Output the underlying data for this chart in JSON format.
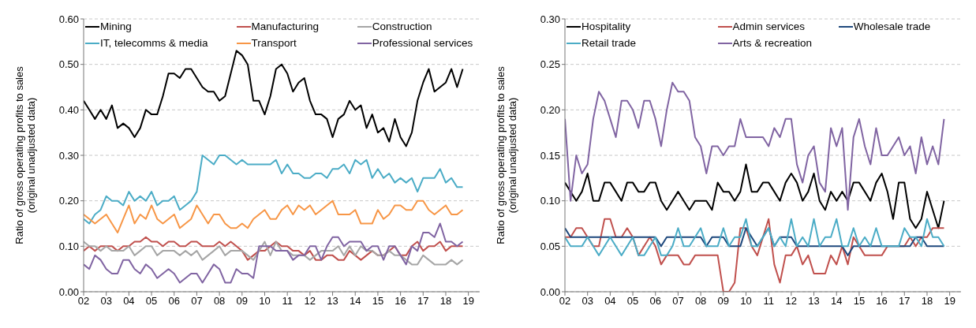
{
  "chart_data": [
    {
      "type": "line",
      "ylabel": "Ratio of gross operating profits to sales (original unadjusted data)",
      "legend": "top",
      "grid": "y",
      "marker": "none",
      "line_style": "solid",
      "x": [
        2002,
        2002.25,
        2002.5,
        2002.75,
        2003,
        2003.25,
        2003.5,
        2003.75,
        2004,
        2004.25,
        2004.5,
        2004.75,
        2005,
        2005.25,
        2005.5,
        2005.75,
        2006,
        2006.25,
        2006.5,
        2006.75,
        2007,
        2007.25,
        2007.5,
        2007.75,
        2008,
        2008.25,
        2008.5,
        2008.75,
        2009,
        2009.25,
        2009.5,
        2009.75,
        2010,
        2010.25,
        2010.5,
        2010.75,
        2011,
        2011.25,
        2011.5,
        2011.75,
        2012,
        2012.25,
        2012.5,
        2012.75,
        2013,
        2013.25,
        2013.5,
        2013.75,
        2014,
        2014.25,
        2014.5,
        2014.75,
        2015,
        2015.25,
        2015.5,
        2015.75,
        2016,
        2016.25,
        2016.5,
        2016.75,
        2017,
        2017.25,
        2017.5,
        2017.75,
        2018,
        2018.25,
        2018.5,
        2018.75
      ],
      "xlim": [
        2002,
        2019.5
      ],
      "xticks": [
        {
          "value": 2002,
          "label": "02"
        },
        {
          "value": 2003,
          "label": "03"
        },
        {
          "value": 2004,
          "label": "04"
        },
        {
          "value": 2005,
          "label": "05"
        },
        {
          "value": 2006,
          "label": "06"
        },
        {
          "value": 2007,
          "label": "07"
        },
        {
          "value": 2008,
          "label": "08"
        },
        {
          "value": 2009,
          "label": "09"
        },
        {
          "value": 2010,
          "label": "10"
        },
        {
          "value": 2011,
          "label": "11"
        },
        {
          "value": 2012,
          "label": "12"
        },
        {
          "value": 2013,
          "label": "13"
        },
        {
          "value": 2014,
          "label": "14"
        },
        {
          "value": 2015,
          "label": "15"
        },
        {
          "value": 2016,
          "label": "16"
        },
        {
          "value": 2017,
          "label": "17"
        },
        {
          "value": 2018,
          "label": "18"
        },
        {
          "value": 2019,
          "label": "19"
        }
      ],
      "ylim": [
        0,
        0.6
      ],
      "yticks": [
        {
          "value": 0,
          "label": "0.00"
        },
        {
          "value": 0.1,
          "label": "0.10"
        },
        {
          "value": 0.2,
          "label": "0.20"
        },
        {
          "value": 0.3,
          "label": "0.30"
        },
        {
          "value": 0.4,
          "label": "0.40"
        },
        {
          "value": 0.5,
          "label": "0.50"
        },
        {
          "value": 0.6,
          "label": "0.60"
        }
      ],
      "series": [
        {
          "name": "Mining",
          "color": "#000000",
          "values": [
            0.42,
            0.4,
            0.38,
            0.4,
            0.38,
            0.41,
            0.36,
            0.37,
            0.36,
            0.34,
            0.36,
            0.4,
            0.39,
            0.39,
            0.43,
            0.48,
            0.48,
            0.47,
            0.49,
            0.49,
            0.47,
            0.45,
            0.44,
            0.44,
            0.42,
            0.43,
            0.48,
            0.53,
            0.52,
            0.5,
            0.42,
            0.42,
            0.39,
            0.43,
            0.49,
            0.5,
            0.48,
            0.44,
            0.46,
            0.47,
            0.42,
            0.39,
            0.39,
            0.38,
            0.34,
            0.38,
            0.39,
            0.42,
            0.4,
            0.41,
            0.36,
            0.39,
            0.35,
            0.36,
            0.33,
            0.38,
            0.34,
            0.32,
            0.35,
            0.42,
            0.46,
            0.49,
            0.44,
            0.45,
            0.46,
            0.49,
            0.45,
            0.49
          ]
        },
        {
          "name": "Manufacturing",
          "color": "#c0504d",
          "values": [
            0.09,
            0.1,
            0.09,
            0.1,
            0.1,
            0.1,
            0.09,
            0.1,
            0.1,
            0.11,
            0.11,
            0.12,
            0.11,
            0.11,
            0.1,
            0.11,
            0.11,
            0.1,
            0.1,
            0.11,
            0.11,
            0.1,
            0.1,
            0.1,
            0.11,
            0.1,
            0.11,
            0.1,
            0.09,
            0.07,
            0.08,
            0.09,
            0.09,
            0.1,
            0.11,
            0.1,
            0.1,
            0.09,
            0.09,
            0.08,
            0.09,
            0.07,
            0.07,
            0.08,
            0.08,
            0.07,
            0.07,
            0.09,
            0.08,
            0.07,
            0.08,
            0.09,
            0.08,
            0.08,
            0.09,
            0.1,
            0.08,
            0.08,
            0.1,
            0.11,
            0.09,
            0.1,
            0.1,
            0.11,
            0.09,
            0.1,
            0.1,
            0.1
          ]
        },
        {
          "name": "Construction",
          "color": "#a6a6a6",
          "values": [
            0.11,
            0.1,
            0.1,
            0.09,
            0.1,
            0.09,
            0.09,
            0.09,
            0.1,
            0.08,
            0.09,
            0.1,
            0.1,
            0.08,
            0.09,
            0.09,
            0.09,
            0.08,
            0.09,
            0.08,
            0.09,
            0.07,
            0.08,
            0.09,
            0.1,
            0.08,
            0.09,
            0.09,
            0.09,
            0.08,
            0.07,
            0.09,
            0.11,
            0.08,
            0.11,
            0.09,
            0.09,
            0.08,
            0.08,
            0.08,
            0.07,
            0.08,
            0.09,
            0.09,
            0.09,
            0.1,
            0.08,
            0.1,
            0.08,
            0.1,
            0.09,
            0.09,
            0.08,
            0.08,
            0.09,
            0.08,
            0.08,
            0.07,
            0.06,
            0.06,
            0.08,
            0.07,
            0.06,
            0.06,
            0.06,
            0.07,
            0.06,
            0.07
          ]
        },
        {
          "name": "IT, telecomms & media",
          "color": "#4bacc6",
          "values": [
            0.16,
            0.15,
            0.17,
            0.18,
            0.21,
            0.2,
            0.2,
            0.19,
            0.22,
            0.2,
            0.21,
            0.2,
            0.22,
            0.19,
            0.2,
            0.2,
            0.21,
            0.18,
            0.19,
            0.2,
            0.22,
            0.3,
            0.29,
            0.28,
            0.3,
            0.3,
            0.29,
            0.28,
            0.29,
            0.28,
            0.28,
            0.28,
            0.28,
            0.28,
            0.29,
            0.26,
            0.28,
            0.26,
            0.26,
            0.25,
            0.25,
            0.26,
            0.26,
            0.25,
            0.27,
            0.27,
            0.28,
            0.26,
            0.29,
            0.28,
            0.29,
            0.25,
            0.27,
            0.25,
            0.26,
            0.24,
            0.25,
            0.24,
            0.25,
            0.22,
            0.25,
            0.25,
            0.25,
            0.27,
            0.24,
            0.25,
            0.23,
            0.23
          ]
        },
        {
          "name": "Transport",
          "color": "#f79646",
          "values": [
            0.17,
            0.16,
            0.15,
            0.16,
            0.17,
            0.15,
            0.13,
            0.16,
            0.19,
            0.15,
            0.17,
            0.16,
            0.19,
            0.16,
            0.15,
            0.16,
            0.17,
            0.14,
            0.15,
            0.16,
            0.19,
            0.17,
            0.15,
            0.17,
            0.17,
            0.15,
            0.14,
            0.14,
            0.15,
            0.14,
            0.16,
            0.17,
            0.18,
            0.16,
            0.16,
            0.18,
            0.19,
            0.17,
            0.19,
            0.18,
            0.19,
            0.17,
            0.18,
            0.19,
            0.2,
            0.17,
            0.17,
            0.17,
            0.18,
            0.15,
            0.15,
            0.15,
            0.18,
            0.16,
            0.17,
            0.19,
            0.19,
            0.18,
            0.18,
            0.2,
            0.2,
            0.18,
            0.17,
            0.18,
            0.19,
            0.17,
            0.17,
            0.18
          ]
        },
        {
          "name": "Professional services",
          "color": "#8064a2",
          "values": [
            0.06,
            0.05,
            0.08,
            0.07,
            0.05,
            0.04,
            0.04,
            0.07,
            0.07,
            0.05,
            0.04,
            0.06,
            0.05,
            0.03,
            0.04,
            0.05,
            0.04,
            0.02,
            0.03,
            0.04,
            0.04,
            0.02,
            0.04,
            0.06,
            0.05,
            0.02,
            0.02,
            0.05,
            0.04,
            0.04,
            0.03,
            0.1,
            0.1,
            0.1,
            0.09,
            0.09,
            0.09,
            0.07,
            0.08,
            0.08,
            0.1,
            0.1,
            0.07,
            0.1,
            0.12,
            0.12,
            0.1,
            0.11,
            0.11,
            0.11,
            0.09,
            0.1,
            0.1,
            0.07,
            0.1,
            0.1,
            0.08,
            0.06,
            0.1,
            0.09,
            0.13,
            0.13,
            0.12,
            0.15,
            0.11,
            0.11,
            0.1,
            0.11
          ]
        }
      ]
    },
    {
      "type": "line",
      "ylabel": "Ratio of gross operating profits to sales (original unadjusted data)",
      "legend": "top",
      "grid": "y",
      "marker": "none",
      "line_style": "solid",
      "x": [
        2002,
        2002.25,
        2002.5,
        2002.75,
        2003,
        2003.25,
        2003.5,
        2003.75,
        2004,
        2004.25,
        2004.5,
        2004.75,
        2005,
        2005.25,
        2005.5,
        2005.75,
        2006,
        2006.25,
        2006.5,
        2006.75,
        2007,
        2007.25,
        2007.5,
        2007.75,
        2008,
        2008.25,
        2008.5,
        2008.75,
        2009,
        2009.25,
        2009.5,
        2009.75,
        2010,
        2010.25,
        2010.5,
        2010.75,
        2011,
        2011.25,
        2011.5,
        2011.75,
        2012,
        2012.25,
        2012.5,
        2012.75,
        2013,
        2013.25,
        2013.5,
        2013.75,
        2014,
        2014.25,
        2014.5,
        2014.75,
        2015,
        2015.25,
        2015.5,
        2015.75,
        2016,
        2016.25,
        2016.5,
        2016.75,
        2017,
        2017.25,
        2017.5,
        2017.75,
        2018,
        2018.25,
        2018.5,
        2018.75
      ],
      "xlim": [
        2002,
        2019.5
      ],
      "xticks": [
        {
          "value": 2002,
          "label": "02"
        },
        {
          "value": 2003,
          "label": "03"
        },
        {
          "value": 2004,
          "label": "04"
        },
        {
          "value": 2005,
          "label": "05"
        },
        {
          "value": 2006,
          "label": "06"
        },
        {
          "value": 2007,
          "label": "07"
        },
        {
          "value": 2008,
          "label": "08"
        },
        {
          "value": 2009,
          "label": "09"
        },
        {
          "value": 2010,
          "label": "10"
        },
        {
          "value": 2011,
          "label": "11"
        },
        {
          "value": 2012,
          "label": "12"
        },
        {
          "value": 2013,
          "label": "13"
        },
        {
          "value": 2014,
          "label": "14"
        },
        {
          "value": 2015,
          "label": "15"
        },
        {
          "value": 2016,
          "label": "16"
        },
        {
          "value": 2017,
          "label": "17"
        },
        {
          "value": 2018,
          "label": "18"
        },
        {
          "value": 2019,
          "label": "19"
        }
      ],
      "ylim": [
        0,
        0.3
      ],
      "yticks": [
        {
          "value": 0,
          "label": "0.00"
        },
        {
          "value": 0.05,
          "label": "0.05"
        },
        {
          "value": 0.1,
          "label": "0.10"
        },
        {
          "value": 0.15,
          "label": "0.15"
        },
        {
          "value": 0.2,
          "label": "0.20"
        },
        {
          "value": 0.25,
          "label": "0.25"
        },
        {
          "value": 0.3,
          "label": "0.30"
        }
      ],
      "series": [
        {
          "name": "Hospitality",
          "color": "#000000",
          "values": [
            0.12,
            0.11,
            0.1,
            0.11,
            0.13,
            0.1,
            0.1,
            0.12,
            0.12,
            0.11,
            0.1,
            0.12,
            0.12,
            0.11,
            0.11,
            0.12,
            0.12,
            0.1,
            0.09,
            0.1,
            0.11,
            0.1,
            0.09,
            0.1,
            0.1,
            0.1,
            0.09,
            0.12,
            0.11,
            0.11,
            0.1,
            0.11,
            0.14,
            0.11,
            0.11,
            0.12,
            0.12,
            0.11,
            0.1,
            0.12,
            0.13,
            0.12,
            0.1,
            0.11,
            0.13,
            0.1,
            0.09,
            0.11,
            0.1,
            0.11,
            0.1,
            0.12,
            0.12,
            0.11,
            0.1,
            0.12,
            0.13,
            0.11,
            0.08,
            0.12,
            0.12,
            0.08,
            0.07,
            0.08,
            0.11,
            0.09,
            0.07,
            0.1
          ]
        },
        {
          "name": "Admin services",
          "color": "#c0504d",
          "values": [
            0.06,
            0.06,
            0.07,
            0.07,
            0.06,
            0.05,
            0.05,
            0.08,
            0.08,
            0.06,
            0.06,
            0.07,
            0.06,
            0.04,
            0.05,
            0.06,
            0.05,
            0.03,
            0.04,
            0.04,
            0.04,
            0.03,
            0.03,
            0.04,
            0.04,
            0.04,
            0.04,
            0.04,
            0.0,
            0.0,
            0.01,
            0.07,
            0.07,
            0.05,
            0.04,
            0.06,
            0.08,
            0.03,
            0.01,
            0.04,
            0.04,
            0.05,
            0.03,
            0.04,
            0.02,
            0.02,
            0.02,
            0.04,
            0.03,
            0.05,
            0.03,
            0.06,
            0.05,
            0.04,
            0.04,
            0.04,
            0.04,
            0.05,
            0.05,
            0.05,
            0.05,
            0.06,
            0.05,
            0.06,
            0.06,
            0.07,
            0.07,
            0.07
          ]
        },
        {
          "name": "Wholesale trade",
          "color": "#1f497d",
          "values": [
            0.07,
            0.06,
            0.06,
            0.06,
            0.06,
            0.06,
            0.06,
            0.06,
            0.06,
            0.06,
            0.06,
            0.06,
            0.06,
            0.06,
            0.06,
            0.06,
            0.06,
            0.05,
            0.06,
            0.06,
            0.06,
            0.06,
            0.06,
            0.06,
            0.06,
            0.05,
            0.06,
            0.06,
            0.06,
            0.05,
            0.05,
            0.05,
            0.07,
            0.06,
            0.05,
            0.06,
            0.07,
            0.05,
            0.06,
            0.06,
            0.06,
            0.05,
            0.05,
            0.05,
            0.05,
            0.05,
            0.05,
            0.05,
            0.05,
            0.05,
            0.04,
            0.05,
            0.05,
            0.05,
            0.05,
            0.05,
            0.05,
            0.05,
            0.05,
            0.05,
            0.05,
            0.05,
            0.06,
            0.06,
            0.05,
            0.05,
            0.05,
            0.05
          ]
        },
        {
          "name": "Retail trade",
          "color": "#4bacc6",
          "values": [
            0.06,
            0.05,
            0.05,
            0.05,
            0.06,
            0.05,
            0.04,
            0.05,
            0.06,
            0.05,
            0.04,
            0.05,
            0.06,
            0.04,
            0.04,
            0.05,
            0.06,
            0.04,
            0.04,
            0.05,
            0.07,
            0.05,
            0.05,
            0.06,
            0.07,
            0.05,
            0.05,
            0.05,
            0.07,
            0.05,
            0.06,
            0.06,
            0.08,
            0.05,
            0.05,
            0.06,
            0.07,
            0.05,
            0.06,
            0.05,
            0.08,
            0.05,
            0.06,
            0.05,
            0.08,
            0.05,
            0.06,
            0.06,
            0.08,
            0.05,
            0.05,
            0.07,
            0.05,
            0.06,
            0.05,
            0.07,
            0.05,
            0.05,
            0.05,
            0.05,
            0.07,
            0.06,
            0.06,
            0.05,
            0.08,
            0.06,
            0.06,
            0.05
          ]
        },
        {
          "name": "Arts & recreation",
          "color": "#8064a2",
          "values": [
            0.19,
            0.1,
            0.15,
            0.13,
            0.14,
            0.19,
            0.22,
            0.21,
            0.19,
            0.17,
            0.21,
            0.21,
            0.2,
            0.18,
            0.21,
            0.21,
            0.19,
            0.16,
            0.2,
            0.23,
            0.22,
            0.22,
            0.21,
            0.17,
            0.16,
            0.13,
            0.16,
            0.16,
            0.15,
            0.16,
            0.16,
            0.19,
            0.17,
            0.17,
            0.17,
            0.17,
            0.16,
            0.18,
            0.17,
            0.19,
            0.19,
            0.14,
            0.12,
            0.15,
            0.16,
            0.12,
            0.11,
            0.18,
            0.16,
            0.18,
            0.09,
            0.17,
            0.19,
            0.16,
            0.14,
            0.18,
            0.15,
            0.15,
            0.16,
            0.17,
            0.15,
            0.16,
            0.13,
            0.17,
            0.14,
            0.16,
            0.14,
            0.19
          ]
        }
      ]
    }
  ]
}
